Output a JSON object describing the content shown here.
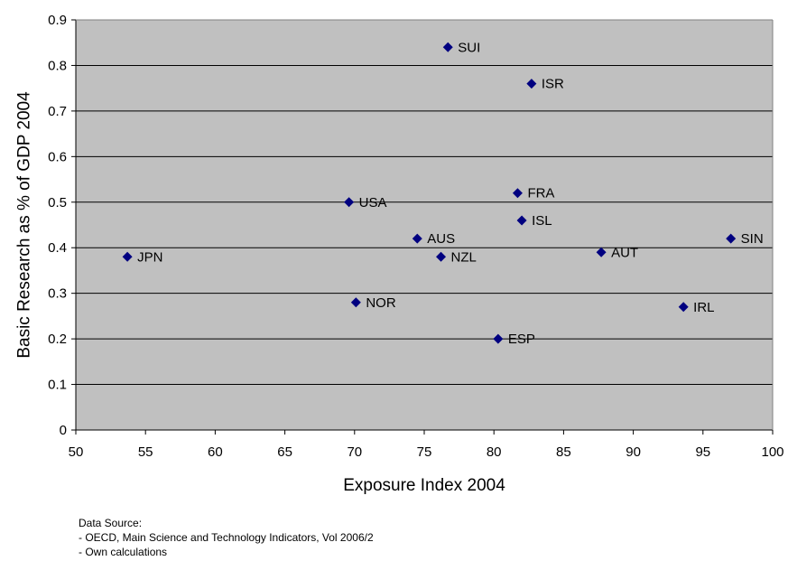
{
  "chart_data": {
    "type": "scatter",
    "title": "",
    "xlabel": "Exposure Index 2004",
    "ylabel": "Basic Research as % of GDP 2004",
    "xlim": [
      50,
      100
    ],
    "ylim": [
      0,
      0.9
    ],
    "x_ticks": [
      "50",
      "55",
      "60",
      "65",
      "70",
      "75",
      "80",
      "85",
      "90",
      "95",
      "100"
    ],
    "y_ticks": [
      "0",
      "0.1",
      "0.2",
      "0.3",
      "0.4",
      "0.5",
      "0.6",
      "0.7",
      "0.8",
      "0.9"
    ],
    "grid": "horizontal",
    "legend": "none",
    "colors": {
      "plot_background": "#c0c0c0",
      "marker": "#000080",
      "gridline": "#000000"
    },
    "points": [
      {
        "label": "SUI",
        "x": 76.7,
        "y": 0.84
      },
      {
        "label": "ISR",
        "x": 82.7,
        "y": 0.76
      },
      {
        "label": "FRA",
        "x": 81.7,
        "y": 0.52
      },
      {
        "label": "USA",
        "x": 69.6,
        "y": 0.5
      },
      {
        "label": "ISL",
        "x": 82.0,
        "y": 0.46
      },
      {
        "label": "AUS",
        "x": 74.5,
        "y": 0.42
      },
      {
        "label": "SIN",
        "x": 97.0,
        "y": 0.42
      },
      {
        "label": "AUT",
        "x": 87.7,
        "y": 0.39
      },
      {
        "label": "JPN",
        "x": 53.7,
        "y": 0.38
      },
      {
        "label": "NZL",
        "x": 76.2,
        "y": 0.38
      },
      {
        "label": "NOR",
        "x": 70.1,
        "y": 0.28
      },
      {
        "label": "IRL",
        "x": 93.6,
        "y": 0.27
      },
      {
        "label": "ESP",
        "x": 80.3,
        "y": 0.2
      }
    ]
  },
  "source_note": {
    "heading": "Data Source:",
    "lines": [
      "- OECD, Main Science and Technology Indicators, Vol 2006/2",
      "- Own calculations"
    ]
  }
}
